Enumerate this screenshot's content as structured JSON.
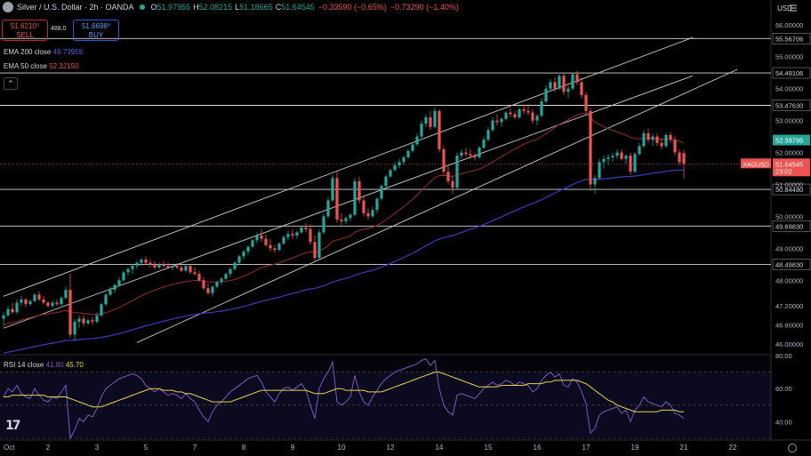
{
  "header": {
    "title": "Silver / U.S. Dollar · 2h · OANDA",
    "o_label": "O",
    "o": "51.97955",
    "h_label": "H",
    "h": "52.08215",
    "l_label": "L",
    "l": "51.18665",
    "c_label": "C",
    "c": "51.64545",
    "change": "−0.33590 (−0.65%)",
    "change2": "−0.73290 (−1.40%)"
  },
  "trade": {
    "sell_price": "51.6210⁰",
    "sell_label": "SELL",
    "spread": "488.0",
    "buy_price": "51.6698⁰",
    "buy_label": "BUY"
  },
  "indicators": {
    "ema200_label": "EMA 200 close",
    "ema200_value": "49.73959",
    "ema200_color": "#3a3dbd",
    "ema50_label": "EMA 50 close",
    "ema50_value": "52.32150",
    "ema50_color": "#e0483f"
  },
  "currency": "USD",
  "colors": {
    "up": "#26a69a",
    "down": "#ef5350",
    "rsi": "#7e57c2",
    "rsi_ma": "#e8d44d"
  },
  "rsi": {
    "label": "RSI 14 close",
    "value": "41.80",
    "ma_value": "45.70"
  },
  "chart_data": {
    "type": "candlestick",
    "symbol": "XAGUSD",
    "ylim": [
      45.7,
      56.3
    ],
    "y_ticks": [
      "56.00000",
      "55.00000",
      "54.00000",
      "53.00000",
      "52.00000",
      "51.00000",
      "50.00000",
      "49.00000",
      "48.00000",
      "47.20000",
      "46.60000",
      "46.00000"
    ],
    "y_tick_values": [
      56,
      55,
      54,
      53,
      52,
      51,
      50,
      49,
      48,
      47.2,
      46.6,
      46
    ],
    "x_ticks": [
      "Oct",
      "2",
      "3",
      "5",
      "7",
      "8",
      "9",
      "10",
      "12",
      "14",
      "15",
      "16",
      "17",
      "19",
      "21",
      "22"
    ],
    "x_tick_index": [
      0,
      10,
      21,
      32,
      43,
      54,
      65,
      76,
      87,
      98,
      109,
      120,
      131,
      142,
      153,
      164
    ],
    "horizontal_levels": [
      {
        "value": 55.56706,
        "label": "55.56706"
      },
      {
        "value": 54.49106,
        "label": "54.49106"
      },
      {
        "value": 53.4763,
        "label": "53.47630"
      },
      {
        "value": 50.8448,
        "label": "50.84480"
      },
      {
        "value": 49.6983,
        "label": "49.69830"
      },
      {
        "value": 48.4983,
        "label": "48.49830"
      }
    ],
    "price_tags": [
      {
        "value": 52.39,
        "label": "52.39795",
        "color": "#26a69a"
      },
      {
        "value": 51.64545,
        "label": "51.64545",
        "sublabel": "23:02",
        "color": "#ef5350"
      }
    ],
    "last_price": 51.64545,
    "channel_lines": [
      {
        "from": {
          "i": 0,
          "v": 46.5
        },
        "to": {
          "i": 155,
          "v": 54.4
        }
      },
      {
        "from": {
          "i": 0,
          "v": 47.5
        },
        "to": {
          "i": 155,
          "v": 55.6
        }
      },
      {
        "from": {
          "i": 30,
          "v": 46.05
        },
        "to": {
          "i": 165,
          "v": 54.6
        }
      }
    ],
    "candles_ohlc": [
      [
        46.8,
        47.0,
        46.55,
        46.9
      ],
      [
        46.9,
        47.2,
        46.85,
        47.1
      ],
      [
        47.1,
        47.3,
        46.95,
        47.0
      ],
      [
        47.0,
        47.4,
        46.95,
        47.3
      ],
      [
        47.3,
        47.5,
        47.2,
        47.4
      ],
      [
        47.4,
        47.45,
        47.15,
        47.25
      ],
      [
        47.25,
        47.4,
        47.2,
        47.35
      ],
      [
        47.35,
        47.6,
        47.3,
        47.55
      ],
      [
        47.55,
        47.65,
        47.35,
        47.4
      ],
      [
        47.4,
        47.5,
        47.25,
        47.3
      ],
      [
        47.3,
        47.35,
        47.15,
        47.2
      ],
      [
        47.2,
        47.35,
        47.15,
        47.3
      ],
      [
        47.3,
        47.4,
        47.2,
        47.25
      ],
      [
        47.25,
        47.5,
        47.2,
        47.45
      ],
      [
        47.45,
        47.8,
        47.4,
        47.7
      ],
      [
        47.7,
        48.2,
        46.2,
        46.3
      ],
      [
        46.3,
        46.8,
        46.1,
        46.7
      ],
      [
        46.7,
        46.9,
        46.5,
        46.8
      ],
      [
        46.8,
        46.9,
        46.55,
        46.65
      ],
      [
        46.65,
        46.8,
        46.6,
        46.75
      ],
      [
        46.75,
        46.85,
        46.6,
        46.7
      ],
      [
        46.7,
        47.0,
        46.65,
        46.9
      ],
      [
        46.9,
        47.3,
        46.85,
        47.25
      ],
      [
        47.25,
        47.6,
        47.2,
        47.55
      ],
      [
        47.55,
        47.8,
        47.5,
        47.7
      ],
      [
        47.7,
        47.9,
        47.6,
        47.85
      ],
      [
        47.85,
        48.1,
        47.8,
        48.0
      ],
      [
        48.0,
        48.3,
        47.95,
        48.25
      ],
      [
        48.25,
        48.4,
        48.15,
        48.35
      ],
      [
        48.35,
        48.5,
        48.2,
        48.45
      ],
      [
        48.45,
        48.6,
        48.35,
        48.55
      ],
      [
        48.55,
        48.7,
        48.45,
        48.65
      ],
      [
        48.65,
        48.75,
        48.5,
        48.55
      ],
      [
        48.55,
        48.65,
        48.4,
        48.5
      ],
      [
        48.5,
        48.6,
        48.35,
        48.4
      ],
      [
        48.4,
        48.55,
        48.35,
        48.5
      ],
      [
        48.5,
        48.6,
        48.4,
        48.45
      ],
      [
        48.45,
        48.55,
        48.35,
        48.4
      ],
      [
        48.4,
        48.5,
        48.3,
        48.45
      ],
      [
        48.45,
        48.55,
        48.35,
        48.4
      ],
      [
        48.4,
        48.5,
        48.25,
        48.3
      ],
      [
        48.3,
        48.5,
        48.25,
        48.45
      ],
      [
        48.45,
        48.5,
        48.2,
        48.25
      ],
      [
        48.25,
        48.4,
        48.15,
        48.2
      ],
      [
        48.2,
        48.3,
        47.95,
        48.0
      ],
      [
        48.0,
        48.1,
        47.7,
        47.75
      ],
      [
        47.75,
        47.9,
        47.55,
        47.6
      ],
      [
        47.6,
        47.85,
        47.5,
        47.8
      ],
      [
        47.8,
        48.0,
        47.75,
        47.95
      ],
      [
        47.95,
        48.1,
        47.85,
        48.05
      ],
      [
        48.05,
        48.25,
        48.0,
        48.2
      ],
      [
        48.2,
        48.4,
        48.1,
        48.35
      ],
      [
        48.35,
        48.6,
        48.3,
        48.55
      ],
      [
        48.55,
        48.8,
        48.5,
        48.75
      ],
      [
        48.75,
        48.95,
        48.65,
        48.9
      ],
      [
        48.9,
        49.1,
        48.8,
        49.05
      ],
      [
        49.05,
        49.3,
        49.0,
        49.25
      ],
      [
        49.25,
        49.5,
        49.15,
        49.4
      ],
      [
        49.4,
        49.6,
        49.2,
        49.3
      ],
      [
        49.3,
        49.45,
        49.05,
        49.1
      ],
      [
        49.1,
        49.3,
        48.9,
        49.0
      ],
      [
        49.0,
        49.1,
        48.85,
        48.95
      ],
      [
        48.95,
        49.2,
        48.9,
        49.15
      ],
      [
        49.15,
        49.4,
        49.1,
        49.35
      ],
      [
        49.35,
        49.55,
        49.25,
        49.45
      ],
      [
        49.45,
        49.6,
        49.3,
        49.4
      ],
      [
        49.4,
        49.55,
        49.3,
        49.5
      ],
      [
        49.5,
        49.7,
        49.45,
        49.65
      ],
      [
        49.65,
        49.8,
        49.5,
        49.6
      ],
      [
        49.6,
        49.75,
        49.1,
        49.2
      ],
      [
        49.2,
        49.4,
        48.6,
        48.7
      ],
      [
        48.7,
        49.6,
        48.65,
        49.5
      ],
      [
        49.5,
        50.1,
        49.45,
        50.0
      ],
      [
        50.0,
        50.6,
        49.95,
        50.5
      ],
      [
        50.5,
        51.3,
        50.45,
        51.2
      ],
      [
        51.2,
        51.4,
        49.8,
        49.9
      ],
      [
        49.9,
        50.1,
        49.7,
        49.85
      ],
      [
        49.85,
        50.0,
        49.75,
        49.95
      ],
      [
        49.95,
        50.1,
        49.85,
        50.05
      ],
      [
        50.05,
        51.2,
        50.0,
        51.1
      ],
      [
        51.1,
        51.25,
        50.4,
        50.5
      ],
      [
        50.5,
        50.6,
        50.0,
        50.1
      ],
      [
        50.1,
        50.25,
        49.9,
        50.0
      ],
      [
        50.0,
        50.3,
        49.95,
        50.2
      ],
      [
        50.2,
        50.6,
        50.1,
        50.55
      ],
      [
        50.55,
        51.0,
        50.5,
        50.95
      ],
      [
        50.95,
        51.3,
        50.9,
        51.25
      ],
      [
        51.25,
        51.5,
        51.2,
        51.45
      ],
      [
        51.45,
        51.7,
        51.4,
        51.6
      ],
      [
        51.6,
        51.8,
        51.5,
        51.7
      ],
      [
        51.7,
        51.9,
        51.6,
        51.85
      ],
      [
        51.85,
        52.1,
        51.8,
        52.05
      ],
      [
        52.05,
        52.3,
        52.0,
        52.25
      ],
      [
        52.25,
        52.6,
        52.2,
        52.5
      ],
      [
        52.5,
        53.0,
        52.45,
        52.9
      ],
      [
        52.9,
        53.2,
        52.8,
        53.1
      ],
      [
        53.1,
        53.3,
        52.7,
        52.8
      ],
      [
        52.8,
        53.4,
        52.75,
        53.3
      ],
      [
        53.3,
        53.35,
        52.0,
        52.1
      ],
      [
        52.1,
        52.2,
        51.3,
        51.4
      ],
      [
        51.4,
        51.6,
        51.0,
        51.1
      ],
      [
        51.1,
        51.3,
        50.7,
        50.9
      ],
      [
        50.9,
        52.0,
        50.85,
        51.9
      ],
      [
        51.9,
        52.1,
        51.8,
        52.0
      ],
      [
        52.0,
        52.15,
        51.85,
        51.95
      ],
      [
        51.95,
        52.1,
        51.8,
        51.9
      ],
      [
        51.9,
        52.0,
        51.75,
        51.85
      ],
      [
        51.85,
        52.2,
        51.8,
        52.15
      ],
      [
        52.15,
        52.5,
        52.1,
        52.4
      ],
      [
        52.4,
        52.8,
        52.35,
        52.7
      ],
      [
        52.7,
        53.1,
        52.65,
        53.0
      ],
      [
        53.0,
        53.2,
        52.85,
        52.95
      ],
      [
        52.95,
        53.1,
        52.8,
        53.05
      ],
      [
        53.05,
        53.3,
        53.0,
        53.25
      ],
      [
        53.25,
        53.4,
        53.1,
        53.2
      ],
      [
        53.2,
        53.3,
        53.05,
        53.1
      ],
      [
        53.1,
        53.4,
        53.05,
        53.35
      ],
      [
        53.35,
        53.5,
        53.2,
        53.3
      ],
      [
        53.3,
        53.45,
        53.15,
        53.25
      ],
      [
        53.25,
        53.35,
        52.9,
        53.0
      ],
      [
        53.0,
        53.2,
        52.85,
        53.15
      ],
      [
        53.15,
        53.7,
        53.1,
        53.6
      ],
      [
        53.6,
        54.1,
        53.55,
        54.0
      ],
      [
        54.0,
        54.3,
        53.9,
        54.2
      ],
      [
        54.2,
        54.35,
        53.9,
        54.0
      ],
      [
        54.0,
        54.45,
        53.95,
        54.4
      ],
      [
        54.4,
        54.5,
        53.8,
        53.9
      ],
      [
        53.9,
        54.1,
        53.7,
        54.0
      ],
      [
        54.0,
        54.5,
        53.95,
        54.45
      ],
      [
        54.45,
        54.55,
        54.1,
        54.2
      ],
      [
        54.2,
        54.35,
        53.7,
        53.8
      ],
      [
        53.8,
        53.9,
        53.2,
        53.3
      ],
      [
        53.3,
        53.4,
        50.8,
        51.0
      ],
      [
        51.0,
        51.3,
        50.7,
        51.2
      ],
      [
        51.2,
        51.8,
        51.15,
        51.7
      ],
      [
        51.7,
        51.9,
        51.5,
        51.8
      ],
      [
        51.8,
        51.95,
        51.6,
        51.85
      ],
      [
        51.85,
        52.0,
        51.7,
        51.9
      ],
      [
        51.9,
        52.1,
        51.8,
        52.0
      ],
      [
        52.0,
        52.1,
        51.75,
        51.8
      ],
      [
        51.8,
        51.95,
        51.65,
        51.9
      ],
      [
        51.9,
        52.0,
        51.3,
        51.4
      ],
      [
        51.4,
        52.0,
        51.35,
        51.95
      ],
      [
        51.95,
        52.3,
        51.9,
        52.2
      ],
      [
        52.2,
        52.7,
        52.15,
        52.6
      ],
      [
        52.6,
        52.75,
        52.3,
        52.4
      ],
      [
        52.4,
        52.6,
        52.2,
        52.5
      ],
      [
        52.5,
        52.6,
        52.2,
        52.3
      ],
      [
        52.3,
        52.45,
        52.1,
        52.2
      ],
      [
        52.2,
        52.6,
        52.15,
        52.55
      ],
      [
        52.55,
        52.65,
        52.3,
        52.4
      ],
      [
        52.4,
        52.5,
        51.9,
        52.0
      ],
      [
        52.0,
        52.1,
        51.6,
        51.7
      ],
      [
        51.97955,
        52.08215,
        51.18665,
        51.64545
      ]
    ],
    "rsi": {
      "ylim": [
        30,
        80
      ],
      "y_ticks": [
        "80.00",
        "60.00",
        "40.00"
      ],
      "y_tick_values": [
        80,
        60,
        40
      ],
      "levels": [
        70,
        50,
        30
      ],
      "values": [
        55,
        60,
        58,
        62,
        57,
        55,
        54,
        60,
        56,
        53,
        52,
        55,
        54,
        58,
        62,
        30,
        35,
        42,
        40,
        44,
        43,
        48,
        55,
        60,
        62,
        64,
        66,
        67,
        68,
        69,
        68,
        66,
        62,
        60,
        58,
        60,
        58,
        56,
        57,
        56,
        54,
        57,
        54,
        52,
        47,
        43,
        40,
        46,
        50,
        52,
        55,
        58,
        60,
        62,
        64,
        66,
        67,
        68,
        64,
        58,
        55,
        52,
        57,
        60,
        61,
        59,
        61,
        63,
        59,
        50,
        42,
        60,
        66,
        70,
        76,
        52,
        50,
        52,
        55,
        68,
        58,
        52,
        50,
        55,
        59,
        63,
        66,
        68,
        70,
        71,
        72,
        73,
        74,
        75,
        77,
        78,
        74,
        77,
        60,
        50,
        46,
        44,
        56,
        57,
        56,
        55,
        54,
        57,
        60,
        62,
        64,
        62,
        63,
        65,
        64,
        62,
        64,
        63,
        62,
        58,
        60,
        65,
        68,
        70,
        67,
        69,
        62,
        61,
        66,
        64,
        58,
        51,
        33,
        36,
        44,
        46,
        47,
        48,
        49,
        45,
        47,
        40,
        47,
        50,
        55,
        52,
        51,
        50,
        49,
        52,
        50,
        45,
        44,
        42
      ],
      "ma": [
        55,
        55,
        56,
        56,
        56,
        56,
        56,
        56,
        56,
        56,
        55,
        55,
        55,
        55,
        55,
        54,
        53,
        52,
        51,
        50,
        49,
        49,
        49,
        50,
        51,
        52,
        53,
        54,
        55,
        56,
        57,
        58,
        59,
        60,
        60,
        60,
        59,
        59,
        59,
        58,
        58,
        57,
        57,
        56,
        55,
        54,
        53,
        52,
        52,
        52,
        52,
        52,
        53,
        54,
        55,
        56,
        57,
        58,
        59,
        59,
        59,
        59,
        59,
        59,
        59,
        59,
        59,
        59,
        59,
        58,
        57,
        57,
        57,
        58,
        59,
        60,
        60,
        59,
        59,
        59,
        59,
        59,
        58,
        58,
        58,
        58,
        59,
        60,
        61,
        62,
        63,
        64,
        65,
        66,
        67,
        68,
        69,
        70,
        70,
        69,
        68,
        67,
        66,
        65,
        64,
        63,
        62,
        61,
        61,
        61,
        61,
        61,
        62,
        62,
        62,
        62,
        62,
        62,
        63,
        63,
        63,
        63,
        64,
        64,
        65,
        65,
        65,
        65,
        65,
        65,
        64,
        63,
        61,
        59,
        57,
        55,
        53,
        52,
        50,
        49,
        48,
        47,
        46,
        46,
        46,
        46,
        46,
        46,
        47,
        47,
        47,
        47,
        46,
        46
      ]
    }
  }
}
